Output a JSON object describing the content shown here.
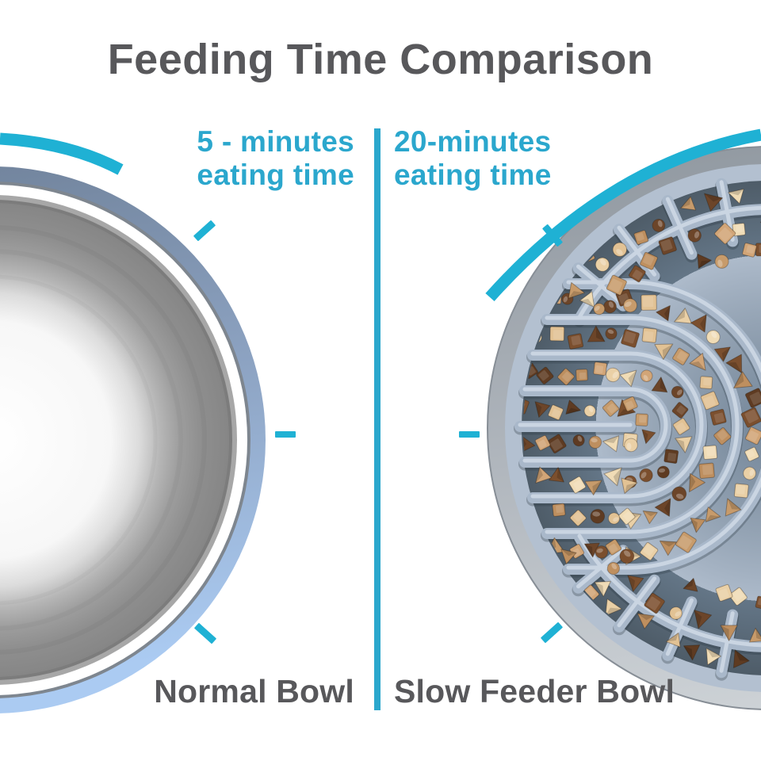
{
  "title": "Feeding Time Comparison",
  "comparison": {
    "left": {
      "time_line1": "5 - minutes",
      "time_line2": "eating time",
      "bowl_label": "Normal Bowl"
    },
    "right": {
      "time_line1": "20-minutes",
      "time_line2": "eating time",
      "bowl_label": "Slow Feeder Bowl"
    }
  },
  "colors": {
    "accent_cyan": "#2BA7CD",
    "dial_cyan": "#1FB1D4",
    "label_gray": "#58585B",
    "background": "#FFFFFF",
    "left_bowl": {
      "rim_top": "#6E8098",
      "rim_mid": "#8CA2C1",
      "rim_bottom": "#ABCBF2",
      "ring_dark": "#7E868F",
      "ring_white": "#FFFFFF",
      "lip": "#A7A7A7",
      "lip_dark": "#7C7C7C",
      "interior_center": "#FFFFFF",
      "interior_edge": "#868686",
      "ring_faint": "#6F6F6F"
    },
    "right_bowl": {
      "rim_dark": "#8F979F",
      "rim_light": "#CDD2D6",
      "rim_edge": "#878E96",
      "silicone_light": "#B3C0D0",
      "wall": "#A9B8CA",
      "wall_highlight": "#CAD5E2",
      "wall_shadow": "rgba(40,52,63,0.30)",
      "floor_light": "#75879A",
      "floor_dark": "#4E5C68",
      "kibble_tan": [
        "#C79B6B",
        "#BE8F5F",
        "#D2A577"
      ],
      "kibble_brown": [
        "#6C4529",
        "#7B4F2E",
        "#5E3B22"
      ],
      "kibble_cream": [
        "#EAD0A6",
        "#E2C294",
        "#F0DCB6"
      ]
    }
  }
}
